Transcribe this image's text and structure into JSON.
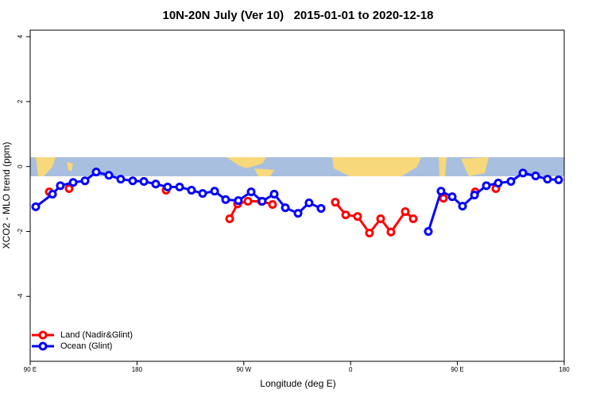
{
  "chart_data": {
    "type": "line",
    "title": "10N-20N July (Ver 10)   2015-01-01 to 2020-12-18",
    "x_label": "Longitude (deg E)",
    "y_label": "XCO2 - MLO trend (ppm)",
    "xlim": [
      90,
      540
    ],
    "ylim": [
      -6,
      4.2
    ],
    "xticks": [
      {
        "value": 90,
        "label": "90 E"
      },
      180,
      {
        "value": 270,
        "label": "90 W"
      },
      {
        "value": 360,
        "label": "0"
      },
      {
        "value": 450,
        "label": "90 E"
      },
      {
        "value": 540,
        "label": "180"
      }
    ],
    "yticks": [
      4,
      2,
      0,
      -2,
      -4
    ],
    "legend": "bottom-left",
    "series": [
      {
        "name": "Land (Nadir&Glint)",
        "color": "#ff0000",
        "x": [
          106.1,
          114,
          122.8,
          164,
          204.5,
          231,
          258.1,
          264.8,
          273.5,
          284.9,
          294.2,
          320,
          347.1,
          355.9,
          365.9,
          375.9,
          385.3,
          394.0,
          406.1,
          412.8,
          425,
          438.2,
          452,
          465.0,
          474,
          482.4
        ],
        "values": [
          -0.78,
          null,
          -0.68,
          null,
          -0.73,
          null,
          -1.61,
          -1.15,
          -1.07,
          -1.07,
          -1.17,
          null,
          -1.1,
          -1.49,
          -1.54,
          -2.05,
          -1.61,
          -2.02,
          -1.39,
          -1.61,
          null,
          -0.98,
          null,
          -0.78,
          null,
          -0.68
        ]
      },
      {
        "name": "Ocean (Glint)",
        "color": "#0000ff",
        "x": [
          94.7,
          108.8,
          115.4,
          126.2,
          136.2,
          145.6,
          156.3,
          166.3,
          176.4,
          185.8,
          195.8,
          205.8,
          215.9,
          225.9,
          235.3,
          245.4,
          254.7,
          265.4,
          276.2,
          285.5,
          295.6,
          305.0,
          315.7,
          325.0,
          335.1,
          380,
          425.5,
          436.2,
          445.6,
          454.3,
          464.4,
          474.4,
          484.4,
          495.1,
          505.2,
          515.9,
          525.9,
          535.3
        ],
        "values": [
          -1.24,
          -0.85,
          -0.59,
          -0.49,
          -0.44,
          -0.17,
          -0.27,
          -0.39,
          -0.44,
          -0.46,
          -0.54,
          -0.63,
          -0.63,
          -0.73,
          -0.83,
          -0.76,
          -1.02,
          -1.05,
          -0.78,
          -1.07,
          -0.85,
          -1.27,
          -1.44,
          -1.12,
          -1.29,
          null,
          -2.0,
          -0.76,
          -0.93,
          -1.22,
          -0.88,
          -0.59,
          -0.51,
          -0.46,
          -0.2,
          -0.29,
          -0.39,
          -0.41
        ]
      }
    ]
  }
}
